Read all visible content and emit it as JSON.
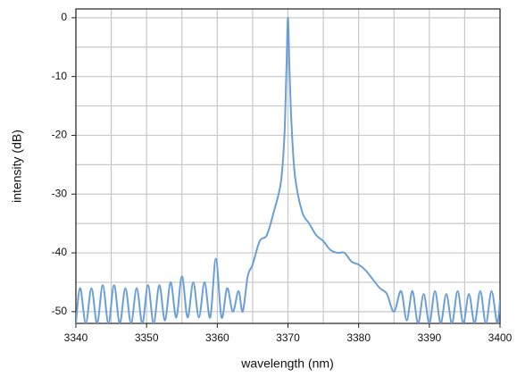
{
  "chart_data": {
    "type": "line",
    "xlabel": "wavelength (nm)",
    "ylabel": "intensity (dB)",
    "color": "#6a9fd8",
    "xlim": [
      3340,
      3400
    ],
    "xticks": [
      3340,
      3350,
      3360,
      3370,
      3380,
      3390,
      3400
    ],
    "ylim": [
      -52,
      1.5
    ],
    "yticks": [
      -50,
      -40,
      -30,
      -20,
      -10,
      0
    ],
    "grid": true,
    "xgrid": [
      3340,
      3345,
      3350,
      3355,
      3360,
      3365,
      3370,
      3375,
      3380,
      3385,
      3390,
      3395,
      3400
    ],
    "ygrid": [
      -50,
      -45,
      -40,
      -35,
      -30,
      -25,
      -20,
      -15,
      -10,
      -5,
      0
    ],
    "x": [
      3340.0,
      3340.6,
      3341.4,
      3342.2,
      3343.0,
      3343.8,
      3344.6,
      3345.4,
      3346.2,
      3347.0,
      3347.8,
      3348.6,
      3349.4,
      3350.2,
      3351.0,
      3351.8,
      3352.6,
      3353.4,
      3354.2,
      3355.0,
      3355.8,
      3356.6,
      3357.4,
      3358.2,
      3359.0,
      3359.8,
      3360.6,
      3361.4,
      3362.2,
      3363.0,
      3363.6,
      3364.3,
      3365.0,
      3366.0,
      3367.0,
      3368.0,
      3369.0,
      3369.5,
      3369.8,
      3370.0,
      3370.2,
      3370.5,
      3371.0,
      3372.0,
      3373.0,
      3374.0,
      3375.0,
      3376.0,
      3377.0,
      3378.0,
      3379.0,
      3380.0,
      3381.0,
      3382.0,
      3383.0,
      3384.0,
      3385.0,
      3386.0,
      3386.8,
      3387.6,
      3388.4,
      3389.2,
      3390.0,
      3390.8,
      3391.6,
      3392.4,
      3393.2,
      3394.0,
      3394.8,
      3395.6,
      3396.4,
      3397.2,
      3398.0,
      3398.8,
      3399.6,
      3400.0
    ],
    "values": [
      -52,
      -46,
      -52,
      -46,
      -52,
      -45.5,
      -52,
      -45.5,
      -52,
      -46,
      -52,
      -46,
      -52,
      -45.5,
      -52,
      -45.5,
      -51.5,
      -45,
      -51,
      -44,
      -51,
      -45,
      -51,
      -45,
      -51,
      -41,
      -51,
      -46,
      -50,
      -46.5,
      -50,
      -44,
      -42,
      -38,
      -37,
      -33,
      -28,
      -20,
      -8,
      0,
      -8,
      -18,
      -27,
      -33,
      -35,
      -37,
      -38,
      -39.5,
      -40,
      -40,
      -41.5,
      -42,
      -43,
      -44.5,
      -46,
      -47,
      -50,
      -46.5,
      -51.5,
      -46.5,
      -52,
      -47,
      -52,
      -46.5,
      -52,
      -47,
      -52,
      -46.5,
      -52,
      -47,
      -52,
      -46.5,
      -52,
      -46.5,
      -52,
      -48
    ]
  }
}
